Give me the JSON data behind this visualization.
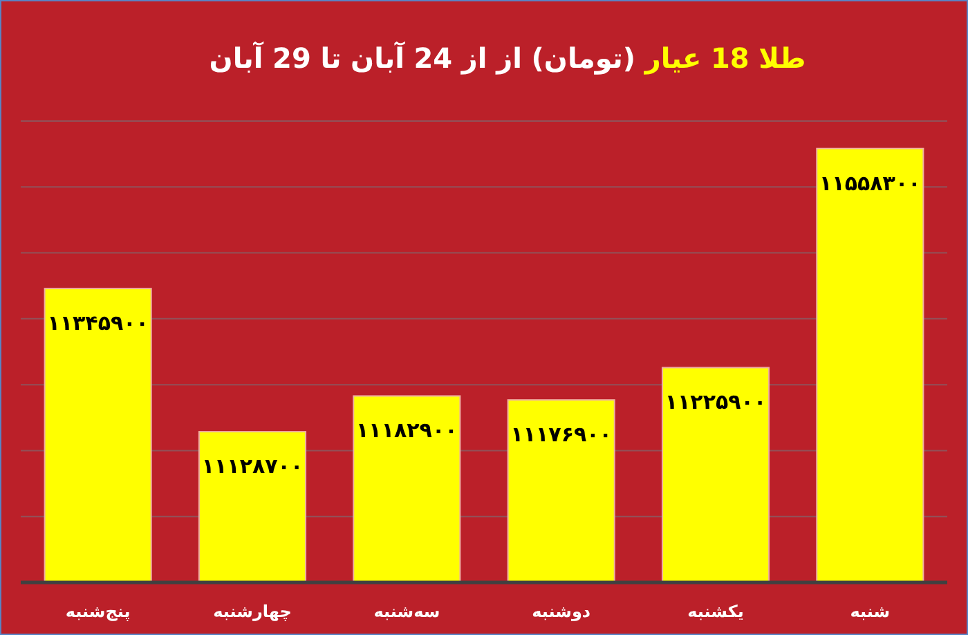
{
  "chart_data": {
    "type": "bar",
    "title": "طلا 18 عیار (تومان) از از 24 آبان تا 29 آبان",
    "categories": [
      "پنج‌شنبه",
      "چهارشنبه",
      "سه‌شنبه",
      "دوشنبه",
      "یکشنبه",
      "شنبه"
    ],
    "values": [
      11345900,
      11128700,
      11182900,
      11176900,
      11225900,
      11558300
    ],
    "value_labels": [
      "۱۱۳۴۵۹۰۰",
      "۱۱۱۲۸۷۰۰",
      "۱۱۱۸۲۹۰۰",
      "۱۱۱۷۶۹۰۰",
      "۱۱۲۲۵۹۰۰",
      "۱۱۵۵۸۳۰۰"
    ],
    "color": "#ffff00",
    "ylim": [
      10900000,
      11600000
    ],
    "yticks": [
      {
        "value": 11000000,
        "label": null
      },
      {
        "value": 11100000,
        "label": null
      },
      {
        "value": 11200000,
        "label": null
      },
      {
        "value": 11300000,
        "label": null
      },
      {
        "value": 11400000,
        "label": null
      },
      {
        "value": 11500000,
        "label": null
      },
      {
        "value": 11600000,
        "label": null
      }
    ],
    "grid": "y",
    "tick_labels": "x"
  }
}
